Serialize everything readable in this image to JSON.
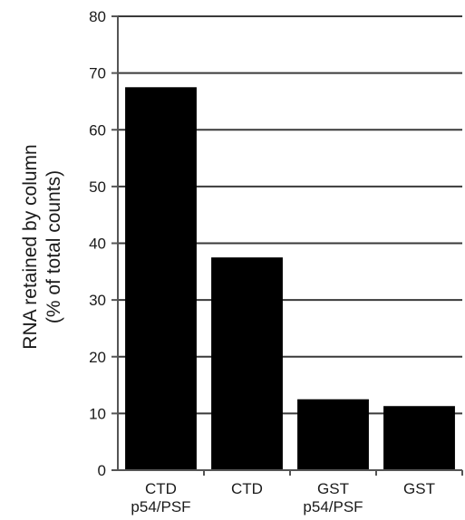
{
  "chart_data": {
    "type": "bar",
    "categories": [
      [
        "CTD",
        "p54/PSF"
      ],
      [
        "CTD"
      ],
      [
        "GST",
        "p54/PSF"
      ],
      [
        "GST"
      ]
    ],
    "values": [
      67.5,
      37.5,
      12.5,
      11.3
    ],
    "title": "",
    "xlabel": "",
    "ylabel": [
      "RNA retained by column",
      "(% of total counts)"
    ],
    "ylim": [
      0,
      80
    ],
    "yticks": [
      0,
      10,
      20,
      30,
      40,
      50,
      60,
      70,
      80
    ],
    "grid": true,
    "legend": "none",
    "bar_color": "#000000",
    "grid_color": "#3a3a3a",
    "axis_color": "#555555"
  }
}
